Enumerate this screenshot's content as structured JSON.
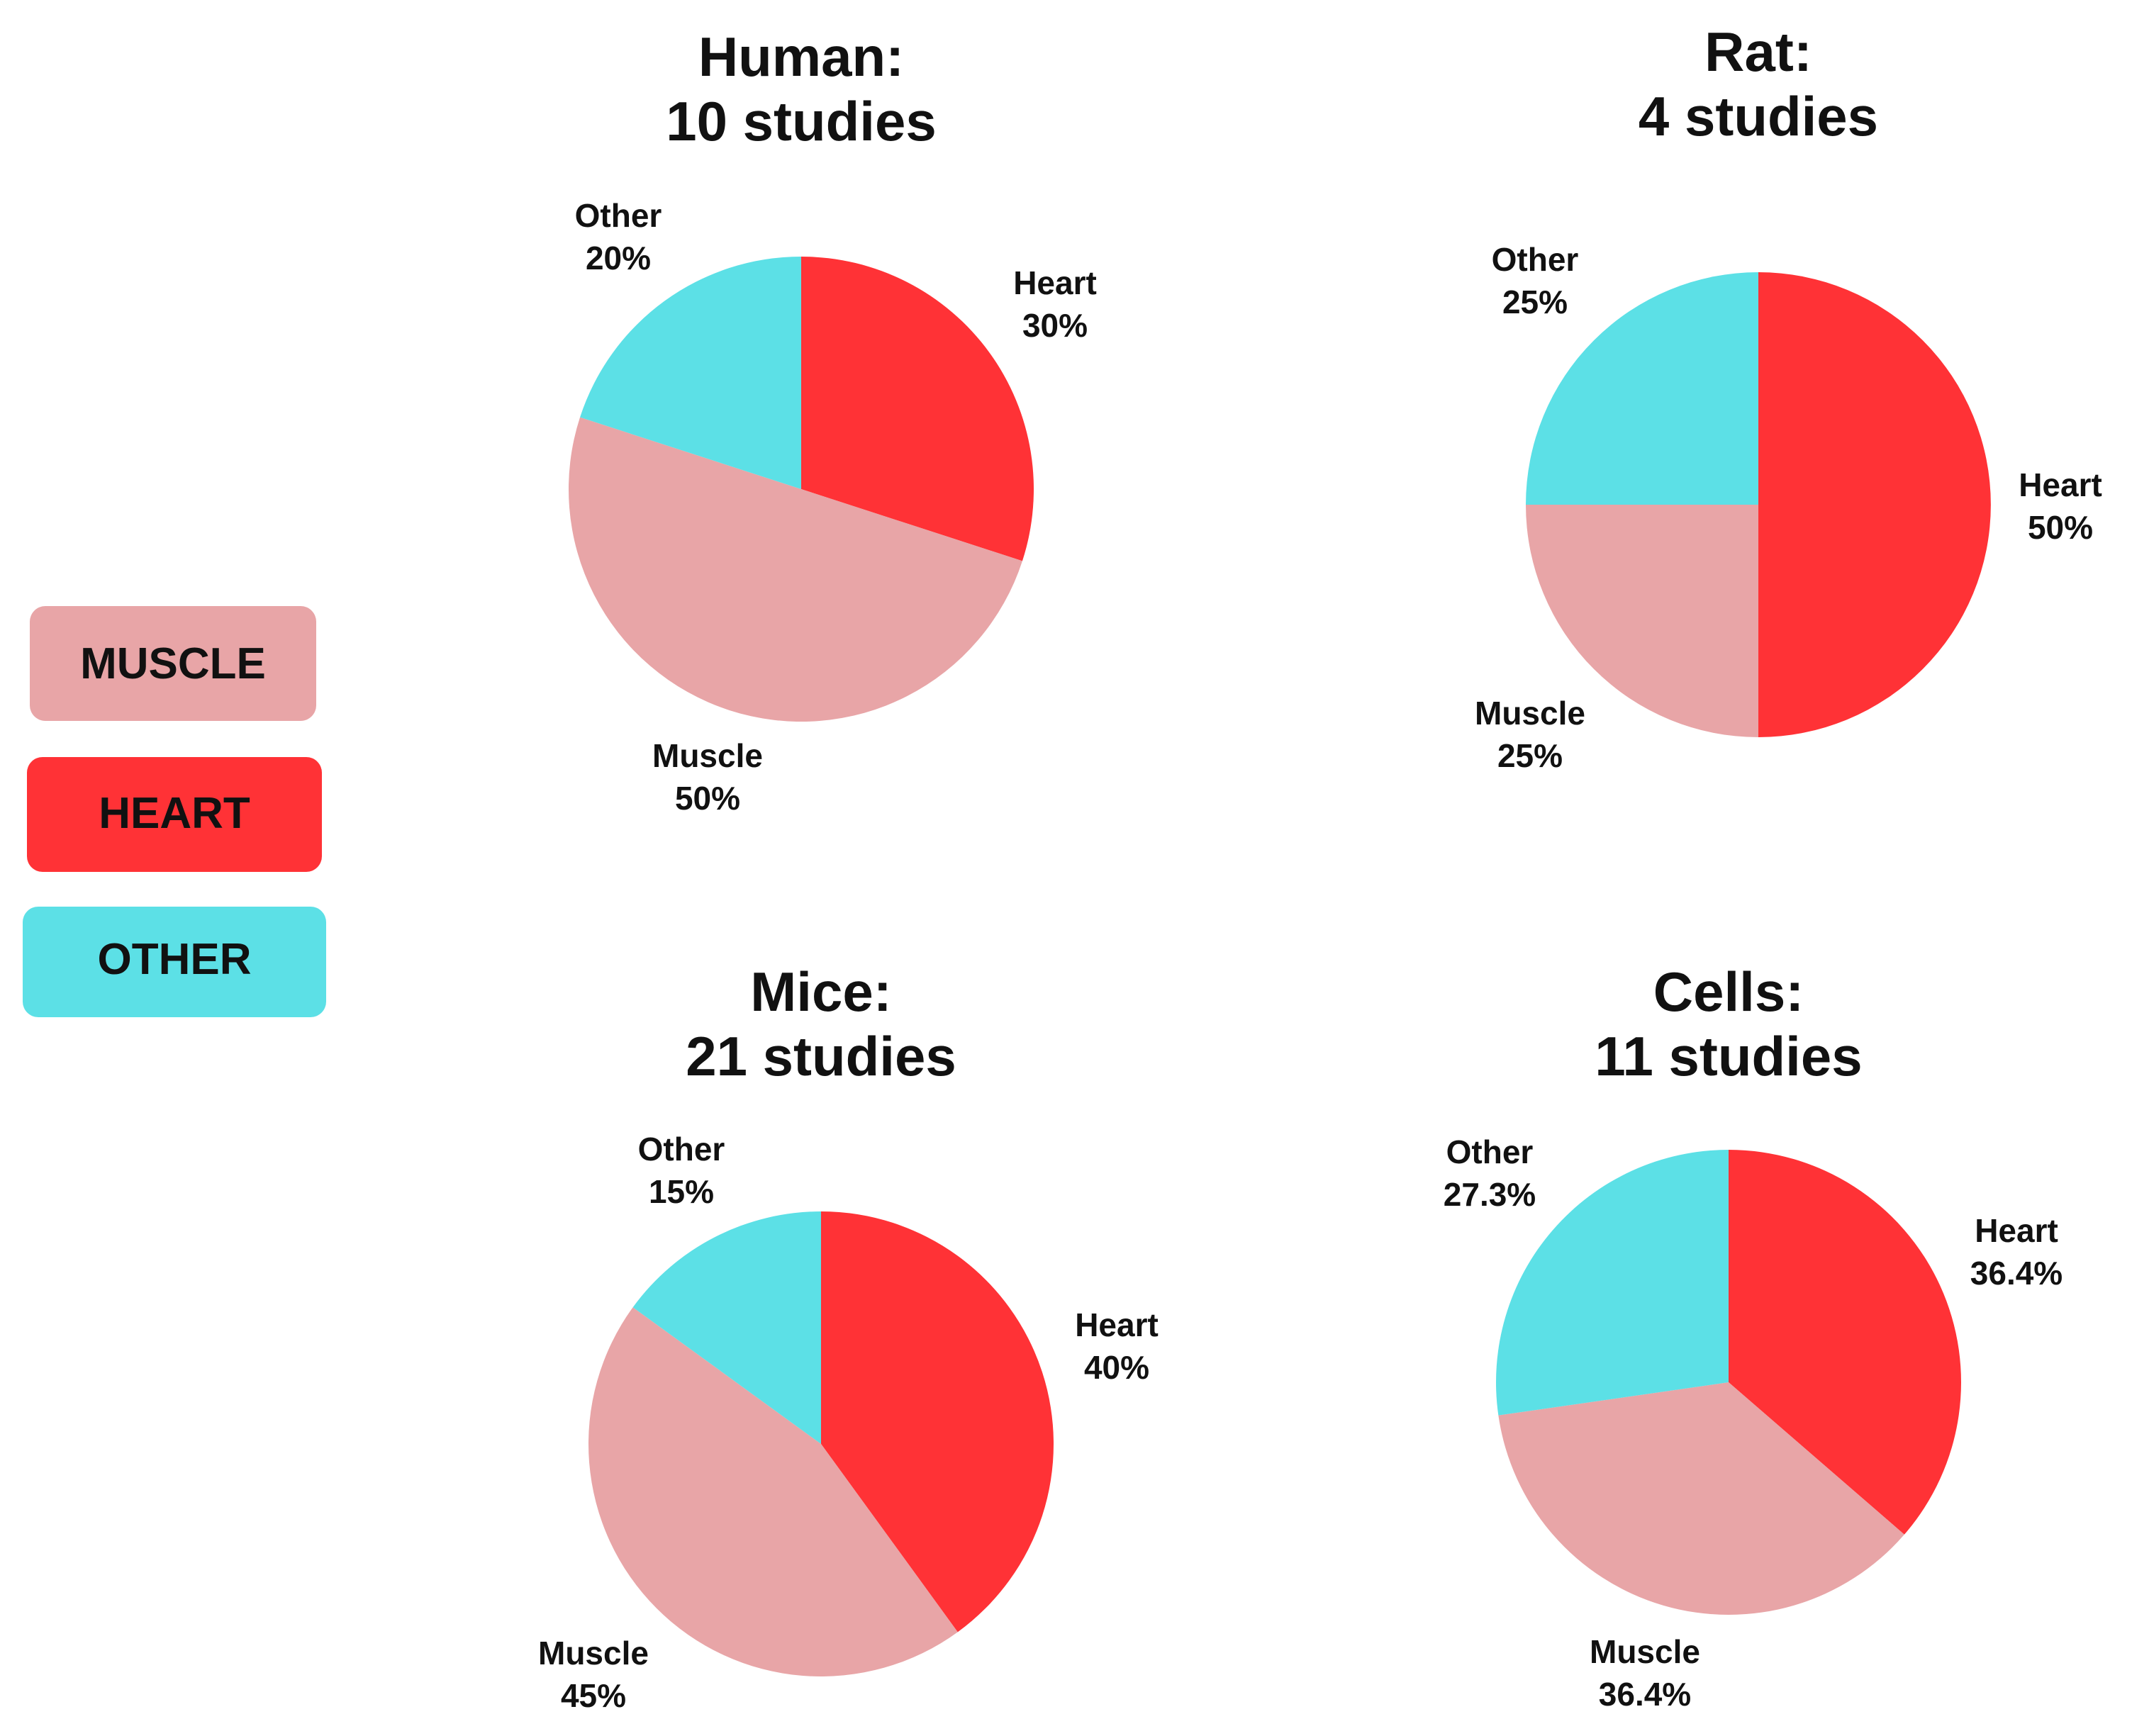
{
  "legend": {
    "items": [
      {
        "label": "MUSCLE",
        "color": "#E8A5A7"
      },
      {
        "label": "HEART",
        "color": "#FF3236"
      },
      {
        "label": "OTHER",
        "color": "#5CE0E6"
      }
    ]
  },
  "chart_data": [
    {
      "type": "pie",
      "title": [
        "Human:",
        "10 studies"
      ],
      "slices": [
        {
          "name": "Heart",
          "value": 30,
          "value_label": "30%",
          "color": "#FF3236"
        },
        {
          "name": "Muscle",
          "value": 50,
          "value_label": "50%",
          "color": "#E8A5A7"
        },
        {
          "name": "Other",
          "value": 20,
          "value_label": "20%",
          "color": "#5CE0E6"
        }
      ]
    },
    {
      "type": "pie",
      "title": [
        "Rat:",
        "4 studies"
      ],
      "slices": [
        {
          "name": "Heart",
          "value": 50,
          "value_label": "50%",
          "color": "#FF3236"
        },
        {
          "name": "Muscle",
          "value": 25,
          "value_label": "25%",
          "color": "#E8A5A7"
        },
        {
          "name": "Other",
          "value": 25,
          "value_label": "25%",
          "color": "#5CE0E6"
        }
      ]
    },
    {
      "type": "pie",
      "title": [
        "Mice:",
        "21 studies"
      ],
      "slices": [
        {
          "name": "Heart",
          "value": 40,
          "value_label": "40%",
          "color": "#FF3236"
        },
        {
          "name": "Muscle",
          "value": 45,
          "value_label": "45%",
          "color": "#E8A5A7"
        },
        {
          "name": "Other",
          "value": 15,
          "value_label": "15%",
          "color": "#5CE0E6"
        }
      ]
    },
    {
      "type": "pie",
      "title": [
        "Cells:",
        "11 studies"
      ],
      "slices": [
        {
          "name": "Heart",
          "value": 36.4,
          "value_label": "36.4%",
          "color": "#FF3236"
        },
        {
          "name": "Muscle",
          "value": 36.4,
          "value_label": "36.4%",
          "color": "#E8A5A7"
        },
        {
          "name": "Other",
          "value": 27.3,
          "value_label": "27.3%",
          "color": "#5CE0E6"
        }
      ]
    }
  ]
}
